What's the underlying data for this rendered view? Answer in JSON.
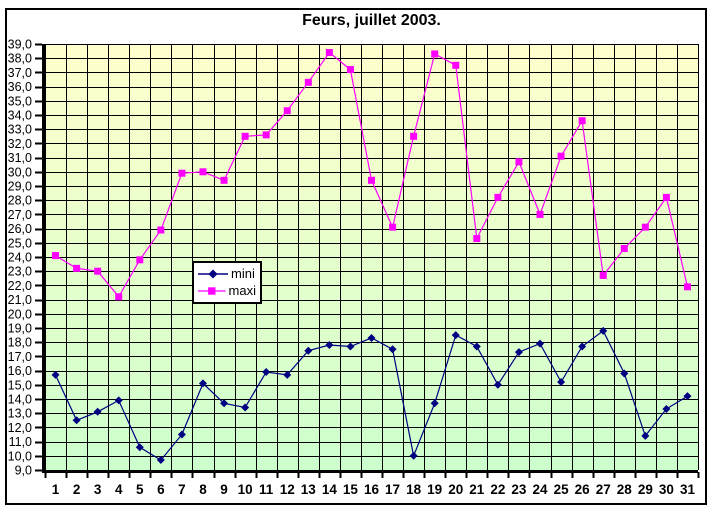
{
  "chart": {
    "title": "Feurs, juillet 2003."
  },
  "chart_data": {
    "type": "line",
    "title": "Feurs, juillet 2003.",
    "xlabel": "",
    "ylabel": "",
    "categories": [
      "1",
      "2",
      "3",
      "4",
      "5",
      "6",
      "7",
      "8",
      "9",
      "10",
      "11",
      "12",
      "13",
      "14",
      "15",
      "16",
      "17",
      "18",
      "19",
      "20",
      "21",
      "22",
      "23",
      "24",
      "25",
      "26",
      "27",
      "28",
      "29",
      "30",
      "31"
    ],
    "series": [
      {
        "name": "mini",
        "color": "#000080",
        "marker": "diamond",
        "values": [
          15.7,
          12.5,
          13.1,
          13.9,
          10.6,
          9.7,
          11.5,
          15.1,
          13.7,
          13.4,
          15.9,
          15.7,
          17.4,
          17.8,
          17.7,
          18.3,
          17.5,
          10.0,
          13.7,
          18.5,
          17.7,
          15.0,
          17.3,
          17.9,
          15.2,
          17.7,
          18.8,
          15.8,
          11.4,
          13.3,
          14.2
        ]
      },
      {
        "name": "maxi",
        "color": "#ff00ff",
        "marker": "square",
        "values": [
          24.1,
          23.2,
          23.0,
          21.2,
          23.8,
          25.9,
          29.9,
          30.0,
          29.4,
          32.5,
          32.6,
          34.3,
          36.3,
          38.4,
          37.2,
          29.4,
          26.1,
          32.5,
          38.3,
          37.5,
          25.3,
          28.2,
          30.7,
          27.0,
          31.1,
          33.6,
          22.7,
          24.6,
          26.1,
          28.2,
          21.9
        ]
      }
    ],
    "ylim": [
      9.0,
      39.0
    ],
    "y_tick_step": 1.0,
    "y_tick_labels": [
      "39,0",
      "38,0",
      "37,0",
      "36,0",
      "35,0",
      "34,0",
      "33,0",
      "32,0",
      "31,0",
      "30,0",
      "29,0",
      "28,0",
      "27,0",
      "26,0",
      "25,0",
      "24,0",
      "23,0",
      "22,0",
      "21,0",
      "20,0",
      "19,0",
      "18,0",
      "17,0",
      "16,0",
      "15,0",
      "14,0",
      "13,0",
      "12,0",
      "11,0",
      "10,0",
      "9,0"
    ],
    "grid": true,
    "legend_position": "inside-center-left",
    "plot_bg_gradient_top": "#ffffcc",
    "plot_bg_gradient_bottom": "#ccffcc",
    "grid_color": "#000000",
    "axis_color": "#000000",
    "text_color": "#000000"
  }
}
